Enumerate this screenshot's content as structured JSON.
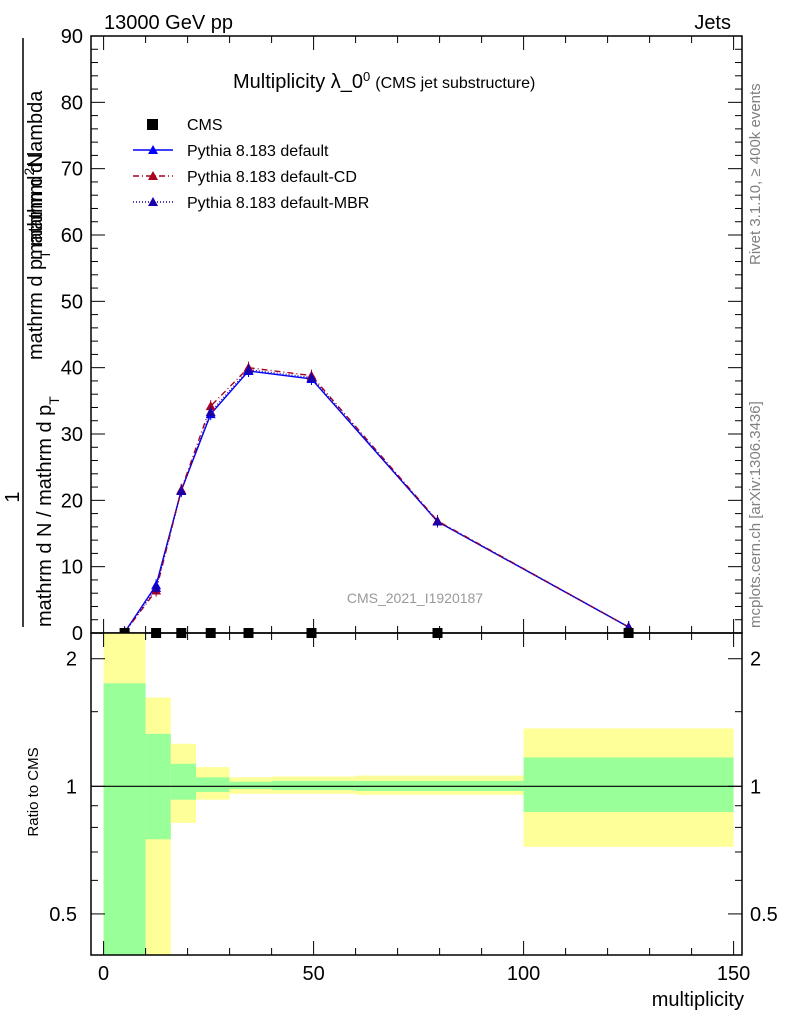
{
  "header": {
    "left": "13000 GeV pp",
    "right": "Jets"
  },
  "side_labels": {
    "rivet": "Rivet 3.1.10, ≥ 400k events",
    "mcplots": "mcplots.cern.ch [arXiv:1306.3436]"
  },
  "chart_data": {
    "type": "line",
    "title": "Multiplicity λ_0^0 (CMS jet substructure)",
    "title_main": "Multiplicity λ_0",
    "title_sup": "0",
    "title_sub": "(CMS jet substructure)",
    "watermark": "CMS_2021_I1920187",
    "xlabel": "multiplicity",
    "ylabel": {
      "top": "1",
      "den_line1": "mathrm d N / mathrm d p",
      "den_line1_sub": "T",
      "num_line1": "mathrm d",
      "num_line1_sup": "2",
      "num_line1_end": "N",
      "num_line2": "mathrm d p",
      "num_line2_sub": "T",
      "num_line2_end": "mathrm d lambda"
    },
    "xlim": [
      -3,
      152
    ],
    "ylim": [
      0,
      90
    ],
    "x_ticks": [
      0,
      50,
      100,
      150
    ],
    "y_ticks": [
      0,
      10,
      20,
      30,
      40,
      50,
      60,
      70,
      80,
      90
    ],
    "legend": {
      "placement": "top-left",
      "entries": [
        {
          "label": "CMS",
          "color": "#000000",
          "style": "marker-square"
        },
        {
          "label": "Pythia 8.183 default",
          "color": "#0000ff",
          "style": "solid"
        },
        {
          "label": "Pythia 8.183 default-CD",
          "color": "#aa0022",
          "style": "dashdot"
        },
        {
          "label": "Pythia 8.183 default-MBR",
          "color": "#1a00aa",
          "style": "dotted"
        }
      ]
    },
    "cms": {
      "x": [
        5,
        12.5,
        18.5,
        25.5,
        34.5,
        49.5,
        79.5,
        125
      ],
      "y": [
        0,
        0,
        0,
        0,
        0,
        0,
        0,
        0
      ]
    },
    "series": [
      {
        "name": "Pythia 8.183 default",
        "color": "#0000ff",
        "dash": "",
        "x": [
          5,
          12.5,
          18.5,
          25.5,
          34.5,
          49.5,
          79.5,
          125
        ],
        "y": [
          0.1,
          7.2,
          21.5,
          33.0,
          39.5,
          38.3,
          16.8,
          0.9
        ]
      },
      {
        "name": "Pythia 8.183 default-CD",
        "color": "#aa0022",
        "dash": "6,3,1,3",
        "x": [
          5,
          12.5,
          18.5,
          25.5,
          34.5,
          49.5,
          79.5,
          125
        ],
        "y": [
          0.1,
          6.4,
          21.6,
          34.2,
          40.0,
          38.8,
          16.9,
          0.9
        ]
      },
      {
        "name": "Pythia 8.183 default-MBR",
        "color": "#1a00aa",
        "dash": "1,2",
        "x": [
          5,
          12.5,
          18.5,
          25.5,
          34.5,
          49.5,
          79.5,
          125
        ],
        "y": [
          0.1,
          6.8,
          21.4,
          33.3,
          39.7,
          38.5,
          16.8,
          0.9
        ]
      }
    ],
    "ratio": {
      "ylabel": "Ratio to CMS",
      "ylim": [
        0.4,
        2.3
      ],
      "y_ticks": [
        0.5,
        1,
        2
      ],
      "y_ticks_labels": [
        "0.5",
        "1",
        "2"
      ],
      "bins": [
        {
          "x0": 0,
          "x1": 10,
          "y1": [
            0.3,
            1.75
          ],
          "y2": [
            0.3,
            2.3
          ]
        },
        {
          "x0": 10,
          "x1": 16,
          "y1": [
            0.75,
            1.33
          ],
          "y2": [
            0.38,
            1.62
          ]
        },
        {
          "x0": 16,
          "x1": 22,
          "y1": [
            0.93,
            1.13
          ],
          "y2": [
            0.82,
            1.26
          ]
        },
        {
          "x0": 22,
          "x1": 30,
          "y1": [
            0.97,
            1.05
          ],
          "y2": [
            0.93,
            1.11
          ]
        },
        {
          "x0": 30,
          "x1": 40,
          "y1": [
            0.985,
            1.025
          ],
          "y2": [
            0.96,
            1.05
          ]
        },
        {
          "x0": 40,
          "x1": 60,
          "y1": [
            0.98,
            1.03
          ],
          "y2": [
            0.96,
            1.055
          ]
        },
        {
          "x0": 60,
          "x1": 100,
          "y1": [
            0.975,
            1.03
          ],
          "y2": [
            0.955,
            1.06
          ]
        },
        {
          "x0": 100,
          "x1": 150,
          "y1": [
            0.87,
            1.17
          ],
          "y2": [
            0.72,
            1.37
          ]
        }
      ]
    },
    "band_colors": {
      "inner": "#99ff99",
      "outer": "#ffff99"
    }
  }
}
